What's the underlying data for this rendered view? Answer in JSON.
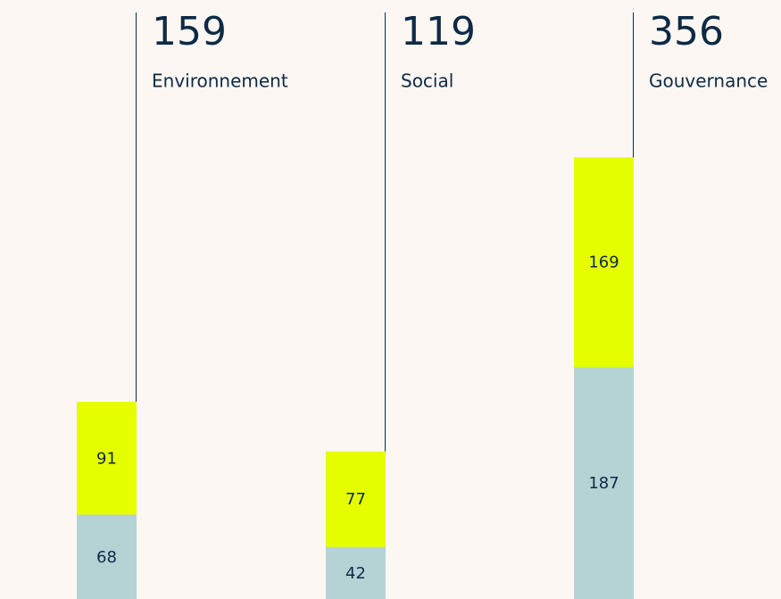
{
  "chart_data": {
    "type": "stacked-bar",
    "categories": [
      "Environnement",
      "Social",
      "Gouvernance"
    ],
    "totals": [
      159,
      119,
      356
    ],
    "series": [
      {
        "color": "#b5d3d5",
        "values": [
          68,
          42,
          187
        ]
      },
      {
        "color": "#e6ff00",
        "values": [
          91,
          77,
          169
        ]
      }
    ],
    "ylim": [
      0,
      480
    ]
  }
}
